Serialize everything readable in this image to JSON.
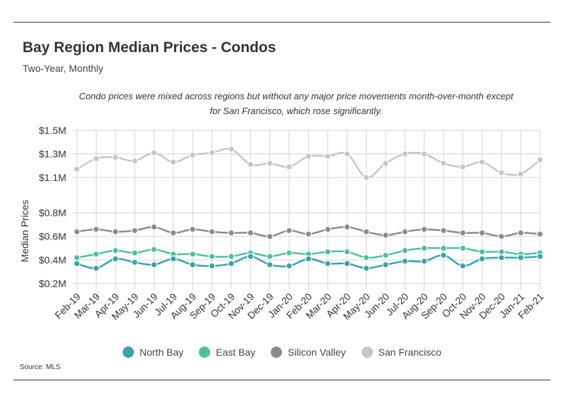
{
  "header": {
    "title": "Bay Region Median Prices - Condos",
    "subtitle": "Two-Year, Monthly"
  },
  "note": {
    "line1": "Condo prices were mixed across regions but without any major price movements month-over-month except",
    "line2": "for San Francisco, which rose significantly."
  },
  "source": "Source:  MLS",
  "chart_data": {
    "type": "line",
    "ylabel": "Median Prices",
    "xlabel": "",
    "ylim": [
      0.15,
      1.5
    ],
    "yticks": [
      {
        "value": 0.2,
        "label": "$0.2M"
      },
      {
        "value": 0.4,
        "label": "$0.4M"
      },
      {
        "value": 0.6,
        "label": "$0.6M"
      },
      {
        "value": 0.8,
        "label": "$0.8M"
      },
      {
        "value": 1.1,
        "label": "$1.1M"
      },
      {
        "value": 1.3,
        "label": "$1.3M"
      },
      {
        "value": 1.5,
        "label": "$1.5M"
      }
    ],
    "grid": true,
    "legend_position": "bottom",
    "categories": [
      "Feb-19",
      "Mar-19",
      "Apr-19",
      "May-19",
      "Jun-19",
      "Jul-19",
      "Aug-19",
      "Sep-19",
      "Oct-19",
      "Nov-19",
      "Dec-19",
      "Jan-20",
      "Feb-20",
      "Mar-20",
      "Apr-20",
      "May-20",
      "Jun-20",
      "Jul-20",
      "Aug-20",
      "Sep-20",
      "Oct-20",
      "Nov-20",
      "Dec-20",
      "Jan-21",
      "Feb-21"
    ],
    "series": [
      {
        "name": "North Bay",
        "color": "#3aa3ad",
        "values": [
          0.37,
          0.33,
          0.41,
          0.38,
          0.36,
          0.41,
          0.36,
          0.35,
          0.37,
          0.43,
          0.36,
          0.35,
          0.41,
          0.37,
          0.37,
          0.33,
          0.36,
          0.39,
          0.39,
          0.44,
          0.35,
          0.41,
          0.42,
          0.42,
          0.43
        ]
      },
      {
        "name": "East Bay",
        "color": "#4dbfa5",
        "values": [
          0.42,
          0.45,
          0.48,
          0.46,
          0.49,
          0.45,
          0.45,
          0.43,
          0.43,
          0.46,
          0.43,
          0.46,
          0.45,
          0.47,
          0.47,
          0.42,
          0.44,
          0.48,
          0.5,
          0.5,
          0.5,
          0.47,
          0.47,
          0.45,
          0.46
        ]
      },
      {
        "name": "Silicon Valley",
        "color": "#8c8c8c",
        "values": [
          0.64,
          0.66,
          0.64,
          0.65,
          0.68,
          0.63,
          0.66,
          0.64,
          0.63,
          0.63,
          0.6,
          0.65,
          0.62,
          0.66,
          0.68,
          0.64,
          0.61,
          0.64,
          0.66,
          0.65,
          0.63,
          0.63,
          0.6,
          0.63,
          0.62
        ]
      },
      {
        "name": "San Francisco",
        "color": "#c6c6c6",
        "values": [
          1.17,
          1.26,
          1.27,
          1.24,
          1.31,
          1.23,
          1.29,
          1.31,
          1.34,
          1.21,
          1.22,
          1.19,
          1.28,
          1.28,
          1.3,
          1.1,
          1.22,
          1.3,
          1.3,
          1.22,
          1.19,
          1.23,
          1.14,
          1.13,
          1.25
        ]
      }
    ]
  }
}
